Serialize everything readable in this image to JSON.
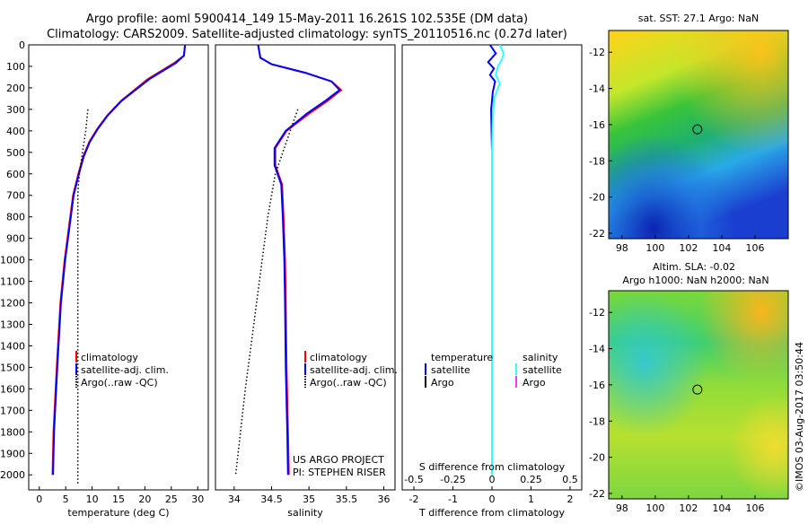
{
  "header": {
    "line1": "Argo profile: aoml 5900414_149 15-May-2011 16.261S 102.535E (DM data)",
    "line2": "Climatology: CARS2009. Satellite-adjusted climatology: synTS_20110516.nc (0.27d later)"
  },
  "footer_stamp": "©IMOS 03-Aug-2017 03:50:44",
  "chart_data": [
    {
      "id": "temperature",
      "type": "line",
      "xlabel": "temperature (deg C)",
      "ylabel": "",
      "xlim": [
        -2,
        32
      ],
      "ylim": [
        2070,
        0
      ],
      "xticks": [
        "0",
        "5",
        "10",
        "15",
        "20",
        "25",
        "30"
      ],
      "yticks": [
        "0",
        "100",
        "200",
        "300",
        "400",
        "500",
        "600",
        "700",
        "800",
        "900",
        "1000",
        "1100",
        "1200",
        "1300",
        "1400",
        "1500",
        "1600",
        "1700",
        "1800",
        "1900",
        "2000"
      ],
      "legend": [
        "climatology",
        "satellite-adj. clim.",
        "Argo(..raw -QC)"
      ],
      "series": [
        {
          "name": "climatology",
          "color": "#ff0000",
          "x": [
            27.6,
            27.4,
            25.5,
            20.5,
            15.5,
            12.8,
            11.0,
            9.5,
            8.3,
            7.4,
            6.4,
            5.6,
            4.8,
            4.0,
            3.3,
            2.7,
            2.5
          ],
          "y": [
            0,
            50,
            85,
            160,
            260,
            330,
            390,
            450,
            520,
            600,
            700,
            850,
            1000,
            1200,
            1500,
            1800,
            2000
          ]
        },
        {
          "name": "satellite-adj. clim.",
          "color": "#0000ff",
          "x": [
            27.6,
            27.4,
            25.8,
            20.8,
            15.6,
            12.9,
            11.1,
            9.6,
            8.4,
            7.5,
            6.5,
            5.7,
            4.9,
            4.1,
            3.4,
            2.8,
            2.6
          ],
          "y": [
            0,
            50,
            85,
            160,
            260,
            330,
            390,
            450,
            520,
            600,
            700,
            850,
            1000,
            1200,
            1500,
            1800,
            2000
          ]
        },
        {
          "name": "Argo(..raw -QC)",
          "color": "#000000",
          "x": [
            9.2,
            8.8,
            8.3,
            7.9,
            7.6,
            7.4,
            7.3,
            7.3,
            7.3,
            7.3,
            7.3,
            7.3,
            7.3
          ],
          "y": [
            300,
            400,
            480,
            550,
            600,
            650,
            700,
            800,
            1000,
            1300,
            1600,
            1900,
            2040
          ]
        }
      ]
    },
    {
      "id": "salinity",
      "type": "line",
      "xlabel": "salinity",
      "ylabel": "",
      "xlim": [
        33.75,
        36.15
      ],
      "ylim": [
        2070,
        0
      ],
      "xticks": [
        "34",
        "34.5",
        "35",
        "35.5",
        "36"
      ],
      "legend": [
        "climatology",
        "satellite-adj. clim.",
        "Argo(..raw -QC)"
      ],
      "annotation": [
        "US ARGO PROJECT",
        "PI: STEPHEN RISER"
      ],
      "series": [
        {
          "name": "climatology",
          "color": "#ff0000",
          "x": [
            34.32,
            34.35,
            34.5,
            34.95,
            35.3,
            35.43,
            35.25,
            35.0,
            34.7,
            34.55,
            34.55,
            34.64,
            34.66,
            34.68,
            34.69,
            34.7,
            34.72,
            34.73
          ],
          "y": [
            0,
            60,
            90,
            130,
            170,
            210,
            260,
            320,
            400,
            480,
            560,
            650,
            800,
            1000,
            1200,
            1500,
            1800,
            2000
          ]
        },
        {
          "name": "satellite-adj. clim.",
          "color": "#0000ff",
          "x": [
            34.32,
            34.35,
            34.5,
            34.95,
            35.3,
            35.41,
            35.22,
            34.97,
            34.69,
            34.54,
            34.54,
            34.63,
            34.65,
            34.67,
            34.68,
            34.69,
            34.71,
            34.72
          ],
          "y": [
            0,
            60,
            90,
            130,
            170,
            210,
            260,
            320,
            400,
            480,
            560,
            650,
            800,
            1000,
            1200,
            1500,
            1800,
            2000
          ]
        },
        {
          "name": "Argo(..raw -QC)",
          "color": "#000000",
          "x": [
            34.85,
            34.75,
            34.65,
            34.55,
            34.45,
            34.3,
            34.15,
            34.02
          ],
          "y": [
            300,
            400,
            500,
            600,
            800,
            1200,
            1600,
            2000
          ]
        }
      ]
    },
    {
      "id": "difference",
      "type": "line",
      "xlabel": "T difference from climatology",
      "xlabel_top": "S difference from climatology",
      "xlim": [
        -2.3,
        2.3
      ],
      "ylim": [
        2070,
        0
      ],
      "xticks": [
        "-2",
        "-1",
        "0",
        "1",
        "2"
      ],
      "xticks_top": [
        "-0.5",
        "-0.25",
        "0",
        "0.25",
        "0.5"
      ],
      "legend_groups": [
        {
          "title": "temperature",
          "items": [
            "satellite",
            "Argo"
          ]
        },
        {
          "title": "salinity",
          "items": [
            "satellite",
            "Argo"
          ]
        }
      ],
      "series": [
        {
          "name": "temperature satellite",
          "color": "#0000ff",
          "x": [
            -0.05,
            0.1,
            -0.1,
            0.05,
            -0.05,
            0.08,
            0.02,
            -0.02,
            0,
            0,
            0,
            0
          ],
          "y": [
            0,
            40,
            80,
            110,
            140,
            170,
            220,
            300,
            500,
            700,
            1200,
            2000
          ]
        },
        {
          "name": "salinity satellite",
          "color": "#33ffff",
          "x": [
            0.2,
            0.3,
            0.25,
            0.15,
            0.1,
            0.2,
            0.05,
            0.02,
            0,
            0,
            0,
            0
          ],
          "y": [
            0,
            40,
            70,
            100,
            140,
            180,
            250,
            350,
            500,
            700,
            1200,
            2000
          ]
        }
      ]
    },
    {
      "id": "sst-map",
      "type": "heatmap",
      "title": "sat. SST: 27.1  Argo: NaN",
      "xticks": [
        "98",
        "100",
        "102",
        "104",
        "106"
      ],
      "yticks": [
        "-12",
        "-14",
        "-16",
        "-18",
        "-20",
        "-22"
      ],
      "xlim": [
        97.2,
        108.0
      ],
      "ylim": [
        -22.3,
        -10.8
      ],
      "marker": {
        "lon": 102.535,
        "lat": -16.261
      }
    },
    {
      "id": "sla-map",
      "type": "heatmap",
      "title": "Altim. SLA: -0.02",
      "subtitle": "Argo h1000: NaN h2000: NaN",
      "xticks": [
        "98",
        "100",
        "102",
        "104",
        "106"
      ],
      "yticks": [
        "-12",
        "-14",
        "-16",
        "-18",
        "-20",
        "-22"
      ],
      "xlim": [
        97.2,
        108.0
      ],
      "ylim": [
        -22.3,
        -10.8
      ],
      "marker": {
        "lon": 102.535,
        "lat": -16.261
      }
    }
  ]
}
